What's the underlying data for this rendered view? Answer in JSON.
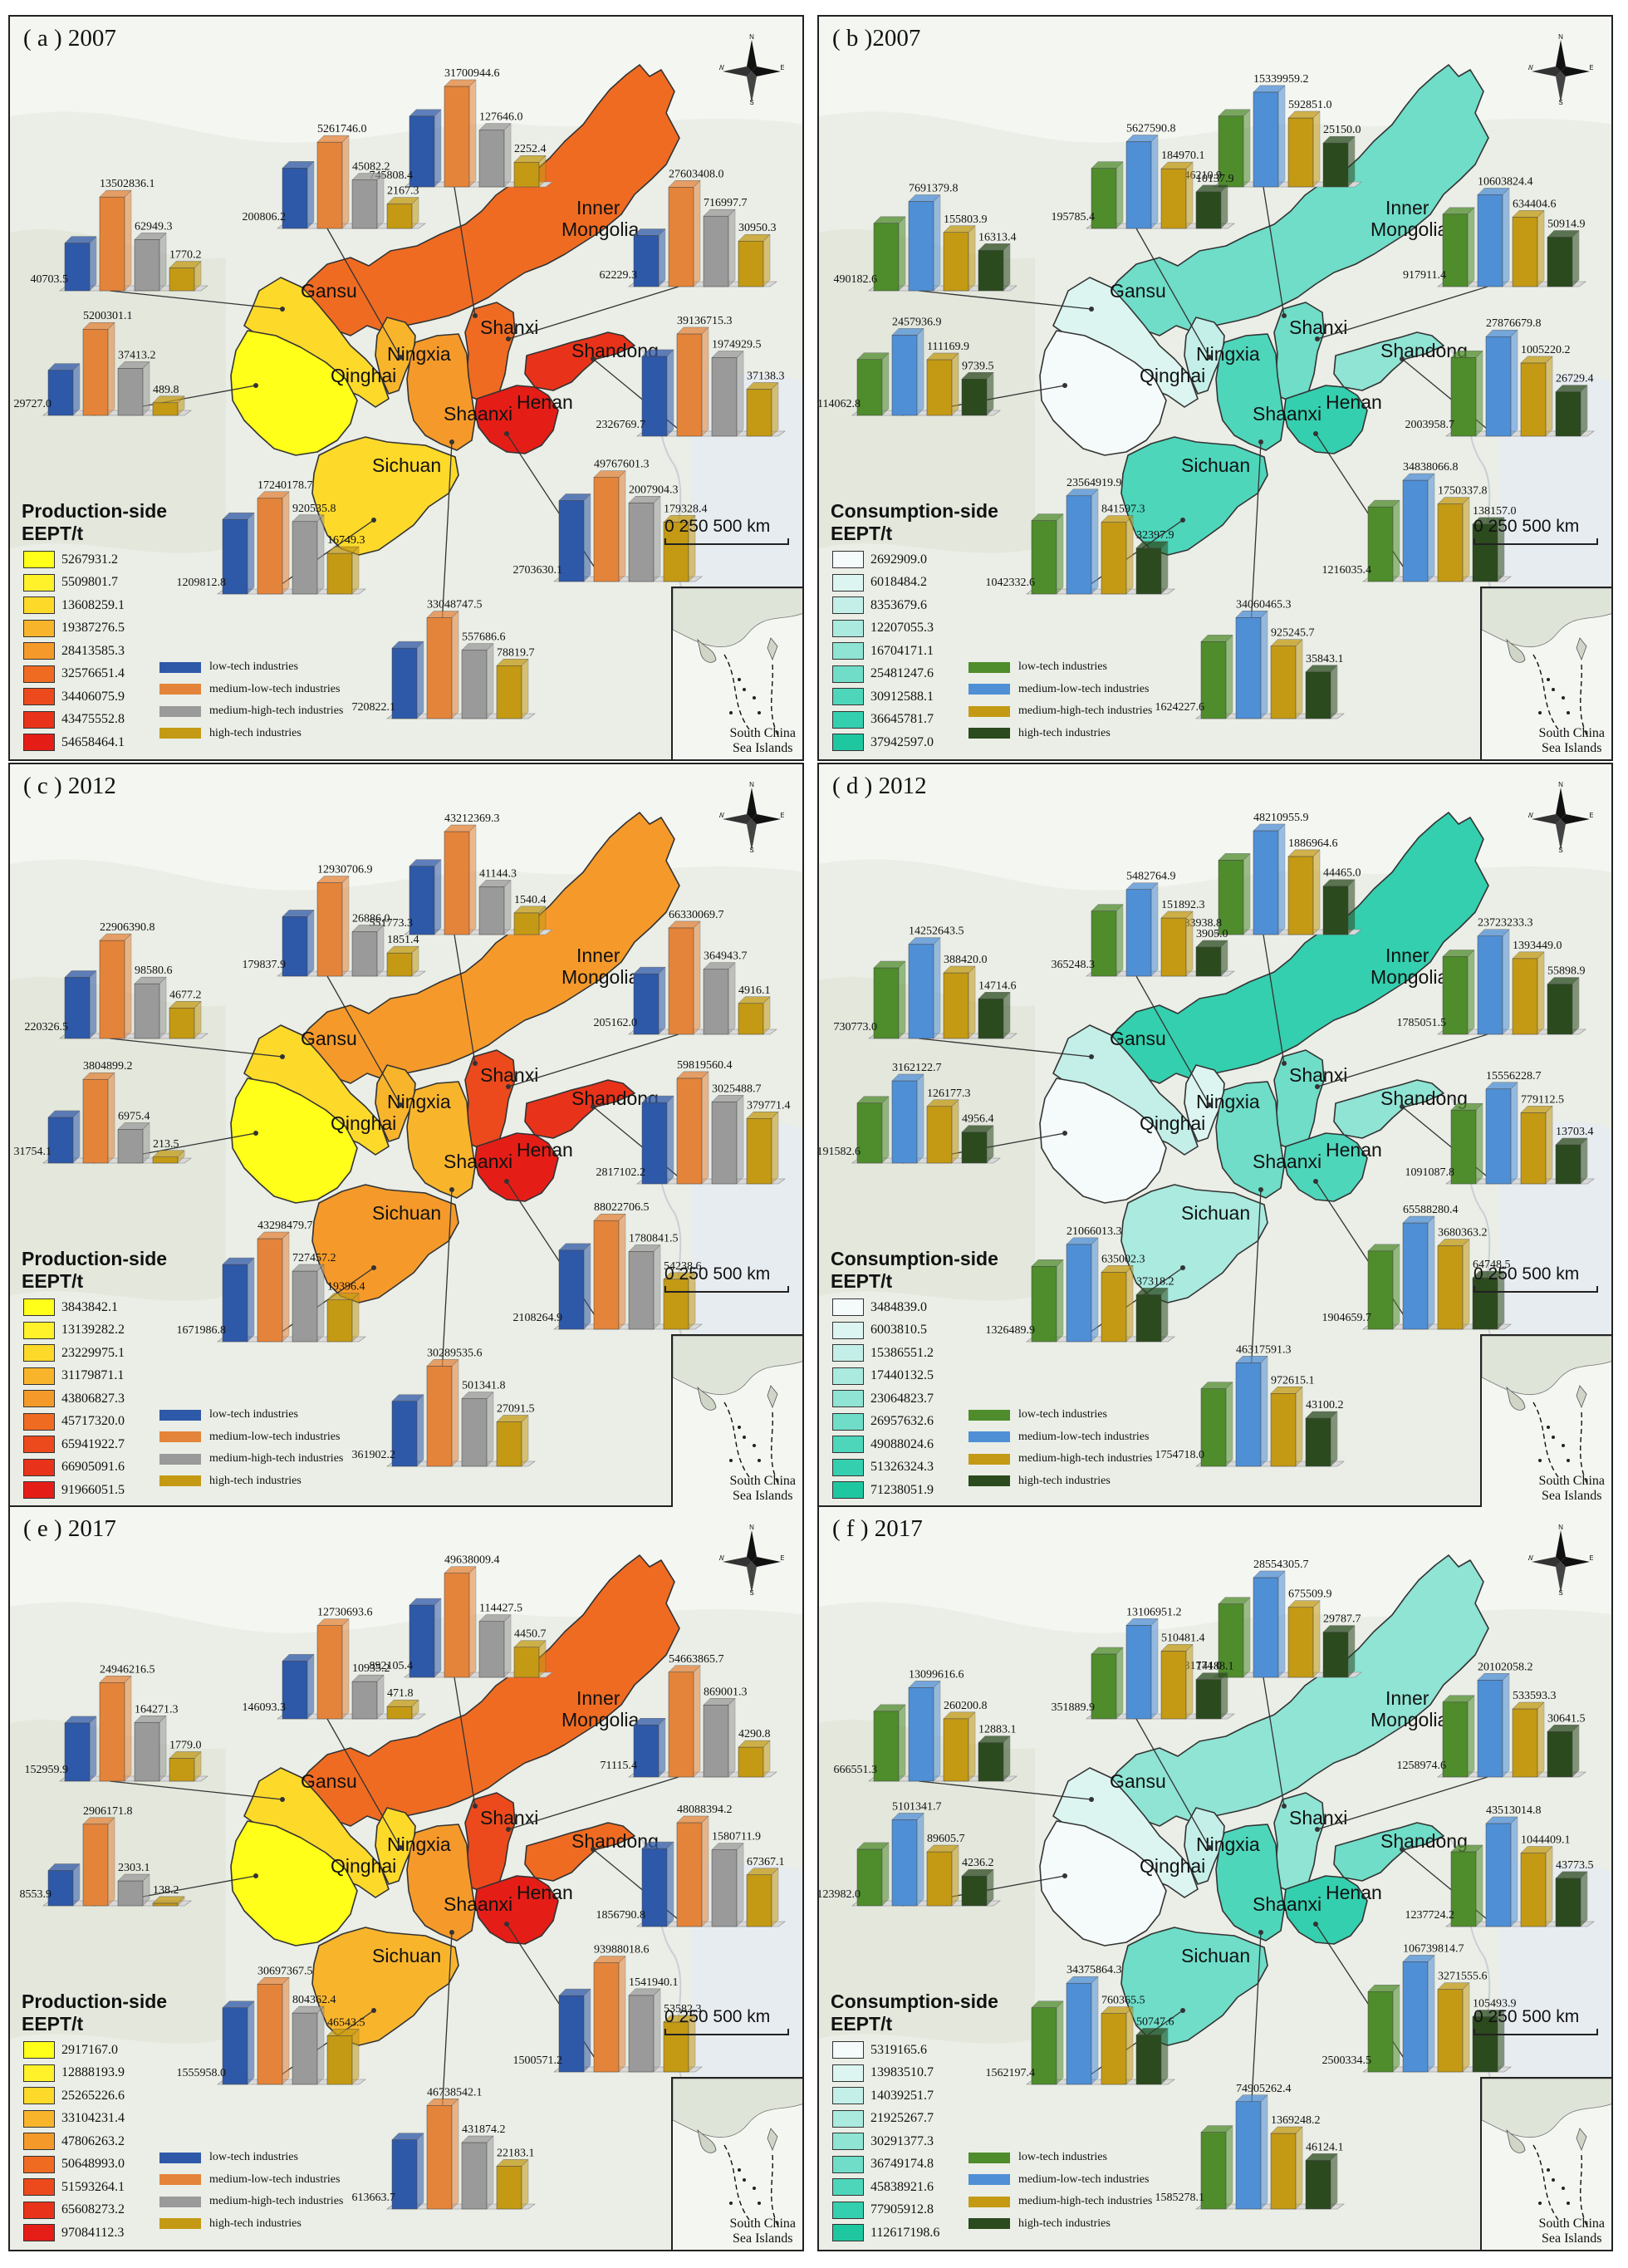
{
  "industry_colors": {
    "low": "#2e58a8",
    "medium-low": "#e4843a",
    "medium-high": "#9a9a9a",
    "high": "#c49a14"
  },
  "consumption_industry_colors": {
    "low": "#4f8c2c",
    "medium-low": "#4f8fd6",
    "medium-high": "#c49a14",
    "high": "#2b4a1e"
  },
  "compass": {
    "n": "N",
    "s": "S",
    "w": "W",
    "e": "E"
  },
  "scalebar": "0 250 500 km",
  "inset_label": [
    "South China",
    "Sea Islands"
  ],
  "panels": [
    {
      "title": "( a ) 2007",
      "type": "production",
      "legend_title": [
        "Production-side",
        "EEPT/t"
      ],
      "legend": [
        "5267931.2",
        "5509801.7",
        "13608259.1",
        "19387276.5",
        "28413585.3",
        "32576651.4",
        "34406075.9",
        "43475552.8",
        "54658464.1"
      ],
      "legend_colors": [
        "#ffff1a",
        "#fff12a",
        "#fdd92a",
        "#f8b52c",
        "#f59a2a",
        "#f06b22",
        "#ec4a1c",
        "#e8331a",
        "#e51d17"
      ],
      "industry_labels": [
        "low-tech industries",
        "medium-low-tech industries",
        "medium-high-tech industries",
        "high-tech industries"
      ],
      "region_colors": {
        "qinghai": "#ffff1a",
        "gansu": "#fdd92a",
        "ningxia": "#f8b52c",
        "inner": "#f06b22",
        "shanxi": "#f06b22",
        "shaanxi": "#f59a2a",
        "shandong": "#e8331a",
        "henan": "#e51d17",
        "sichuan": "#fdd92a"
      },
      "region_names": {
        "gansu": "Gansu",
        "qinghai": "Qinghai",
        "ningxia": "Ningxia",
        "shanxi": "Shanxi",
        "shandong": "Shandong",
        "henan": "Henan",
        "shaanxi": "Shaanxi",
        "sichuan": "Sichuan",
        "inner1": "Inner",
        "inner2": "Mongolia"
      },
      "charts": [
        {
          "region": "inner",
          "values": [
            "745808.4",
            "31700944.6",
            "127646.0",
            "2252.4"
          ]
        },
        {
          "region": "ningxia",
          "values": [
            "200806.2",
            "5261746.0",
            "45082.2",
            "2167.3"
          ]
        },
        {
          "region": "gansu",
          "values": [
            "40703.5",
            "13502836.1",
            "62949.3",
            "1770.2"
          ]
        },
        {
          "region": "shanxi",
          "values": [
            "62229.3",
            "27603408.0",
            "716997.7",
            "30950.3"
          ]
        },
        {
          "region": "qinghai",
          "values": [
            "29727.0",
            "5200301.1",
            "37413.2",
            "489.8"
          ]
        },
        {
          "region": "shandong",
          "values": [
            "2326769.7",
            "39136715.3",
            "1974929.5",
            "37138.3"
          ]
        },
        {
          "region": "sichuan",
          "values": [
            "1209812.8",
            "17240178.7",
            "920535.8",
            "16749.3"
          ]
        },
        {
          "region": "henan",
          "values": [
            "2703630.1",
            "49767601.3",
            "2007904.3",
            "179328.4"
          ]
        },
        {
          "region": "shaanxi",
          "values": [
            "720822.1",
            "33048747.5",
            "557686.6",
            "78819.7"
          ]
        }
      ]
    },
    {
      "title": "( b )2007",
      "type": "consumption",
      "legend_title": [
        "Consumption-side",
        "EEPT/t"
      ],
      "legend": [
        "2692909.0",
        "6018484.2",
        "8353679.6",
        "12207055.3",
        "16704171.1",
        "25481247.6",
        "30912588.1",
        "36645781.7",
        "37942597.0"
      ],
      "legend_colors": [
        "#f4fbfa",
        "#dcf5f1",
        "#c3efe8",
        "#aaeadf",
        "#8fe4d4",
        "#6fddc8",
        "#4ed6bb",
        "#34cfae",
        "#1ec7a0"
      ],
      "industry_labels": [
        "low-tech industries",
        "medium-low-tech industries",
        "medium-high-tech industries",
        "high-tech industries"
      ],
      "region_colors": {
        "qinghai": "#f4fbfa",
        "gansu": "#dcf5f1",
        "ningxia": "#c3efe8",
        "inner": "#6fddc8",
        "shanxi": "#6fddc8",
        "shaanxi": "#4ed6bb",
        "shandong": "#8fe4d4",
        "henan": "#34cfae",
        "sichuan": "#4ed6bb"
      },
      "region_names": {
        "gansu": "Gansu",
        "qinghai": "Qinghai",
        "ningxia": "Ningxia",
        "shanxi": "Shanxi",
        "shandong": "Shandong",
        "henan": "Henan",
        "shaanxi": "Shaanxi",
        "sichuan": "Sichuan",
        "inner1": "Inner",
        "inner2": "Mongolia"
      },
      "charts": [
        {
          "region": "inner",
          "values": [
            "746210.9",
            "15339959.2",
            "592851.0",
            "25150.0"
          ]
        },
        {
          "region": "ningxia",
          "values": [
            "195785.4",
            "5627590.8",
            "184970.1",
            "10137.9"
          ]
        },
        {
          "region": "gansu",
          "values": [
            "490182.6",
            "7691379.8",
            "155803.9",
            "16313.4"
          ]
        },
        {
          "region": "shanxi",
          "values": [
            "917911.4",
            "10603824.4",
            "634404.6",
            "50914.9"
          ]
        },
        {
          "region": "qinghai",
          "values": [
            "114062.8",
            "2457936.9",
            "111169.9",
            "9739.5"
          ]
        },
        {
          "region": "shandong",
          "values": [
            "2003958.7",
            "27876679.8",
            "1005220.2",
            "26729.4"
          ]
        },
        {
          "region": "sichuan",
          "values": [
            "1042332.6",
            "23564919.9",
            "841597.3",
            "32397.9"
          ]
        },
        {
          "region": "henan",
          "values": [
            "1216035.4",
            "34838066.8",
            "1750337.8",
            "138157.0"
          ]
        },
        {
          "region": "shaanxi",
          "values": [
            "1624227.6",
            "34060465.3",
            "925245.7",
            "35843.1"
          ]
        }
      ]
    },
    {
      "title": "( c ) 2012",
      "type": "production",
      "legend_title": [
        "Production-side",
        "EEPT/t"
      ],
      "legend": [
        "3843842.1",
        "13139282.2",
        "23229975.1",
        "31179871.1",
        "43806827.3",
        "45717320.0",
        "65941922.7",
        "66905091.6",
        "91966051.5"
      ],
      "legend_colors": [
        "#ffff1a",
        "#fff12a",
        "#fdd92a",
        "#f8b52c",
        "#f59a2a",
        "#f06b22",
        "#ec4a1c",
        "#e8331a",
        "#e51d17"
      ],
      "industry_labels": [
        "low-tech industries",
        "medium-low-tech industries",
        "medium-high-tech industries",
        "high-tech industries"
      ],
      "region_colors": {
        "qinghai": "#ffff1a",
        "gansu": "#fdd92a",
        "ningxia": "#f8b52c",
        "inner": "#f59a2a",
        "shanxi": "#ec4a1c",
        "shaanxi": "#f8b52c",
        "shandong": "#e8331a",
        "henan": "#e51d17",
        "sichuan": "#f59a2a"
      },
      "region_names": {
        "gansu": "Gansu",
        "qinghai": "Qinghai",
        "ningxia": "Ningxia",
        "shanxi": "Shanxi",
        "shandong": "Shandong",
        "henan": "Henan",
        "shaanxi": "Shaanxi",
        "sichuan": "Sichuan",
        "inner1": "Inner",
        "inner2": "Mongolia"
      },
      "charts": [
        {
          "region": "inner",
          "values": [
            "551773.3",
            "43212369.3",
            "41144.3",
            "1540.4"
          ]
        },
        {
          "region": "ningxia",
          "values": [
            "179837.9",
            "12930706.9",
            "26886.0",
            "1851.4"
          ]
        },
        {
          "region": "gansu",
          "values": [
            "220326.5",
            "22906390.8",
            "98580.6",
            "4677.2"
          ]
        },
        {
          "region": "shanxi",
          "values": [
            "205162.0",
            "66330069.7",
            "364943.7",
            "4916.1"
          ]
        },
        {
          "region": "qinghai",
          "values": [
            "31754.1",
            "3804899.2",
            "6975.4",
            "213.5"
          ]
        },
        {
          "region": "shandong",
          "values": [
            "2817102.2",
            "59819560.4",
            "3025488.7",
            "379771.4"
          ]
        },
        {
          "region": "sichuan",
          "values": [
            "1671986.8",
            "43298479.7",
            "727457.2",
            "19396.4"
          ]
        },
        {
          "region": "henan",
          "values": [
            "2108264.9",
            "88022706.5",
            "1780841.5",
            "54238.6"
          ]
        },
        {
          "region": "shaanxi",
          "values": [
            "361902.2",
            "30289535.6",
            "501341.8",
            "27091.5"
          ]
        }
      ]
    },
    {
      "title": "( d ) 2012",
      "type": "consumption",
      "legend_title": [
        "Consumption-side",
        "EEPT/t"
      ],
      "legend": [
        "3484839.0",
        "6003810.5",
        "15386551.2",
        "17440132.5",
        "23064823.7",
        "26957632.6",
        "49088024.6",
        "51326324.3",
        "71238051.9"
      ],
      "legend_colors": [
        "#f4fbfa",
        "#dcf5f1",
        "#c3efe8",
        "#aaeadf",
        "#8fe4d4",
        "#6fddc8",
        "#4ed6bb",
        "#34cfae",
        "#1ec7a0"
      ],
      "industry_labels": [
        "low-tech industries",
        "medium-low-tech industries",
        "medium-high-tech industries",
        "high-tech industries"
      ],
      "region_colors": {
        "qinghai": "#f4fbfa",
        "gansu": "#c3efe8",
        "ningxia": "#dcf5f1",
        "inner": "#34cfae",
        "shanxi": "#6fddc8",
        "shaanxi": "#6fddc8",
        "shandong": "#8fe4d4",
        "henan": "#4ed6bb",
        "sichuan": "#aaeadf"
      },
      "region_names": {
        "gansu": "Gansu",
        "qinghai": "Qinghai",
        "ningxia": "Ningxia",
        "shanxi": "Shanxi",
        "shandong": "Shandong",
        "henan": "Henan",
        "shaanxi": "Shaanxi",
        "sichuan": "Sichuan",
        "inner1": "Inner",
        "inner2": "Mongolia"
      },
      "charts": [
        {
          "region": "inner",
          "values": [
            "1183938.8",
            "48210955.9",
            "1886964.6",
            "44465.0"
          ]
        },
        {
          "region": "ningxia",
          "values": [
            "365248.3",
            "5482764.9",
            "151892.3",
            "3905.0"
          ]
        },
        {
          "region": "gansu",
          "values": [
            "730773.0",
            "14252643.5",
            "388420.0",
            "14714.6"
          ]
        },
        {
          "region": "shanxi",
          "values": [
            "1785051.5",
            "23723233.3",
            "1393449.0",
            "55898.9"
          ]
        },
        {
          "region": "qinghai",
          "values": [
            "191582.6",
            "3162122.7",
            "126177.3",
            "4956.4"
          ]
        },
        {
          "region": "shandong",
          "values": [
            "1091087.8",
            "15556228.7",
            "779112.5",
            "13703.4"
          ]
        },
        {
          "region": "sichuan",
          "values": [
            "1326489.9",
            "21066013.3",
            "635002.3",
            "37318.2"
          ]
        },
        {
          "region": "henan",
          "values": [
            "1904659.7",
            "65588280.4",
            "3680363.2",
            "64748.5"
          ]
        },
        {
          "region": "shaanxi",
          "values": [
            "1754718.0",
            "46317591.3",
            "972615.1",
            "43100.2"
          ]
        }
      ]
    },
    {
      "title": "( e ) 2017",
      "type": "production",
      "legend_title": [
        "Production-side",
        "EEPT/t"
      ],
      "legend": [
        "2917167.0",
        "12888193.9",
        "25265226.6",
        "33104231.4",
        "47806263.2",
        "50648993.0",
        "51593264.1",
        "65608273.2",
        "97084112.3"
      ],
      "legend_colors": [
        "#ffff1a",
        "#fff12a",
        "#fdd92a",
        "#f8b52c",
        "#f59a2a",
        "#f06b22",
        "#ec4a1c",
        "#e8331a",
        "#e51d17"
      ],
      "industry_labels": [
        "low-tech industries",
        "medium-low-tech industries",
        "medium-high-tech industries",
        "high-tech industries"
      ],
      "region_colors": {
        "qinghai": "#ffff1a",
        "gansu": "#fdd92a",
        "ningxia": "#fdd92a",
        "inner": "#f06b22",
        "shanxi": "#ec4a1c",
        "shaanxi": "#f59a2a",
        "shandong": "#f06b22",
        "henan": "#e51d17",
        "sichuan": "#f8b52c"
      },
      "region_names": {
        "gansu": "Gansu",
        "qinghai": "Qinghai",
        "ningxia": "Ningxia",
        "shanxi": "Shanxi",
        "shandong": "Shandong",
        "henan": "Henan",
        "shaanxi": "Shaanxi",
        "sichuan": "Sichuan",
        "inner1": "Inner",
        "inner2": "Mongolia"
      },
      "charts": [
        {
          "region": "inner",
          "values": [
            "892105.4",
            "49638009.4",
            "114427.5",
            "4450.7"
          ]
        },
        {
          "region": "ningxia",
          "values": [
            "146093.3",
            "12730693.6",
            "10935.2",
            "471.8"
          ]
        },
        {
          "region": "gansu",
          "values": [
            "152959.9",
            "24946216.5",
            "164271.3",
            "1779.0"
          ]
        },
        {
          "region": "shanxi",
          "values": [
            "71115.4",
            "54663865.7",
            "869001.3",
            "4290.8"
          ]
        },
        {
          "region": "qinghai",
          "values": [
            "8553.9",
            "2906171.8",
            "2303.1",
            "138.2"
          ]
        },
        {
          "region": "shandong",
          "values": [
            "1856790.8",
            "48088394.2",
            "1580711.9",
            "67367.1"
          ]
        },
        {
          "region": "sichuan",
          "values": [
            "1555958.0",
            "30697367.5",
            "804362.4",
            "46543.5"
          ]
        },
        {
          "region": "henan",
          "values": [
            "1500571.2",
            "93988018.6",
            "1541940.1",
            "53582.3"
          ]
        },
        {
          "region": "shaanxi",
          "values": [
            "613663.7",
            "46738542.1",
            "431874.2",
            "22183.1"
          ]
        }
      ]
    },
    {
      "title": "( f ) 2017",
      "type": "consumption",
      "legend_title": [
        "Consumption-side",
        "EEPT/t"
      ],
      "legend": [
        "5319165.6",
        "13983510.7",
        "14039251.7",
        "21925267.7",
        "30291377.3",
        "36749174.8",
        "45838921.6",
        "77905912.8",
        "112617198.6"
      ],
      "legend_colors": [
        "#f4fbfa",
        "#dcf5f1",
        "#c3efe8",
        "#aaeadf",
        "#8fe4d4",
        "#6fddc8",
        "#4ed6bb",
        "#34cfae",
        "#1ec7a0"
      ],
      "industry_labels": [
        "low-tech industries",
        "medium-low-tech industries",
        "medium-high-tech industries",
        "high-tech industries"
      ],
      "region_colors": {
        "qinghai": "#f4fbfa",
        "gansu": "#dcf5f1",
        "ningxia": "#c3efe8",
        "inner": "#8fe4d4",
        "shanxi": "#8fe4d4",
        "shaanxi": "#4ed6bb",
        "shandong": "#6fddc8",
        "henan": "#34cfae",
        "sichuan": "#6fddc8"
      },
      "region_names": {
        "gansu": "Gansu",
        "qinghai": "Qinghai",
        "ningxia": "Ningxia",
        "shanxi": "Shanxi",
        "shandong": "Shandong",
        "henan": "Henan",
        "shaanxi": "Shaanxi",
        "sichuan": "Sichuan",
        "inner1": "Inner",
        "inner2": "Mongolia"
      },
      "charts": [
        {
          "region": "inner",
          "values": [
            "1031774.0",
            "28554305.7",
            "675509.9",
            "29787.7"
          ]
        },
        {
          "region": "ningxia",
          "values": [
            "351889.9",
            "13106951.2",
            "510481.4",
            "14188.1"
          ]
        },
        {
          "region": "gansu",
          "values": [
            "666551.3",
            "13099616.6",
            "260200.8",
            "12883.1"
          ]
        },
        {
          "region": "shanxi",
          "values": [
            "1258974.6",
            "20102058.2",
            "533593.3",
            "30641.5"
          ]
        },
        {
          "region": "qinghai",
          "values": [
            "123982.0",
            "5101341.7",
            "89605.7",
            "4236.2"
          ]
        },
        {
          "region": "shandong",
          "values": [
            "1237724.2",
            "43513014.8",
            "1044409.1",
            "43773.5"
          ]
        },
        {
          "region": "sichuan",
          "values": [
            "1562197.4",
            "34375864.3",
            "760365.5",
            "50747.6"
          ]
        },
        {
          "region": "henan",
          "values": [
            "2500334.5",
            "106739814.7",
            "3271555.6",
            "105493.9"
          ]
        },
        {
          "region": "shaanxi",
          "values": [
            "1585278.1",
            "74905262.4",
            "1369248.2",
            "46124.1"
          ]
        }
      ]
    }
  ]
}
